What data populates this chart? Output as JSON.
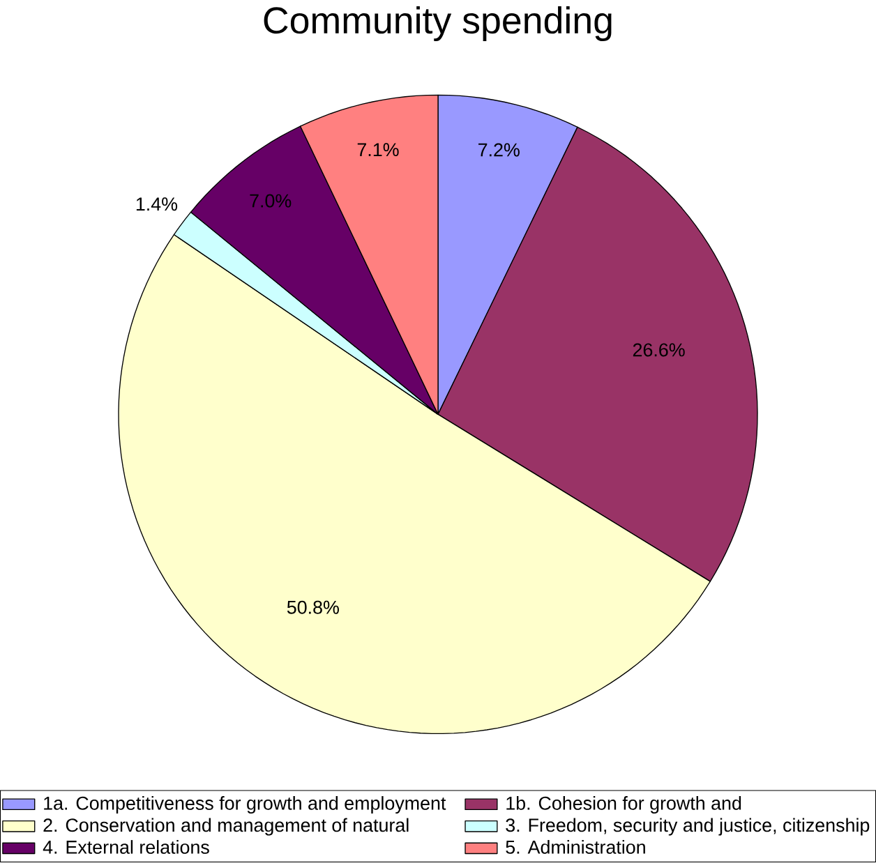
{
  "chart_data": {
    "type": "pie",
    "title": "Community spending",
    "categories": [
      "1a. Competitiveness for growth and employment",
      "1b. Cohesion for growth and",
      "2. Conservation and management of natural",
      "3.  Freedom, security and justice, citizenship",
      "4. External relations",
      "5. Administration"
    ],
    "values": [
      7.2,
      26.6,
      50.8,
      1.4,
      7.0,
      7.1
    ],
    "value_labels": [
      "7.2%",
      "26.6%",
      "50.8%",
      "1.4%",
      "7.0%",
      "7.1%"
    ],
    "colors": [
      "#9999ff",
      "#993366",
      "#ffffcc",
      "#ccffff",
      "#660066",
      "#ff8080"
    ],
    "legend": "bottom"
  }
}
